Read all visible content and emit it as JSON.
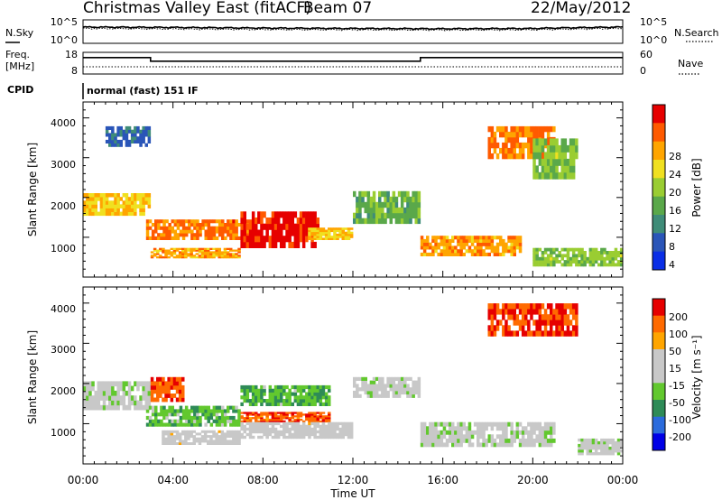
{
  "header": {
    "station": "Christmas Valley East (fitACF)",
    "beam": "Beam 07",
    "date": "22/May/2012"
  },
  "noise_panel": {
    "left_label": "N.Sky",
    "right_label": "N.Search",
    "left_ticks": [
      "10^5",
      "10^0"
    ],
    "right_ticks": [
      "10^5",
      "10^0"
    ]
  },
  "freq_panel": {
    "left_label_1": "Freq.",
    "left_label_2": "[MHz]",
    "right_label": "Nave",
    "left_ticks": [
      "18",
      "8"
    ],
    "right_ticks": [
      "60",
      "0"
    ]
  },
  "cpid": {
    "label": "CPID",
    "mode": "normal (fast) 151 IF"
  },
  "x_axis": {
    "title": "Time UT",
    "ticks": [
      "00:00",
      "04:00",
      "08:00",
      "12:00",
      "16:00",
      "20:00",
      "00:00"
    ]
  },
  "colors": {
    "power_scale": [
      "#0a2ee6",
      "#2a55b8",
      "#3f8c78",
      "#5aa84a",
      "#9acd32",
      "#f0e020",
      "#ffa500",
      "#ff5a00",
      "#e60000"
    ],
    "velocity_scale": [
      "#0000e6",
      "#2b6bdc",
      "#2e8b57",
      "#62c82e",
      "#c8c8c8",
      "#c8c8c8",
      "#ffa500",
      "#ff6a00",
      "#e60000"
    ]
  },
  "chart_data": [
    {
      "type": "line",
      "name": "noise",
      "x": [
        "00:00",
        "04:00",
        "08:00",
        "12:00",
        "16:00",
        "20:00",
        "00:00"
      ],
      "series": [
        {
          "name": "N.Sky",
          "values": [
            3000,
            2500,
            1800,
            1500,
            1300,
            1500,
            3000
          ]
        },
        {
          "name": "N.Search",
          "values": [
            1500,
            1200,
            900,
            800,
            700,
            800,
            1500
          ]
        }
      ],
      "ylim_left": [
        1,
        100000
      ],
      "ylim_right": [
        1,
        100000
      ],
      "scale": "log"
    },
    {
      "type": "line",
      "name": "frequency-nave",
      "x": [
        "00:00",
        "03:00",
        "03:00",
        "15:00",
        "15:00",
        "00:00"
      ],
      "series": [
        {
          "name": "Freq.",
          "values": [
            15.6,
            15.6,
            13.9,
            13.9,
            15.6,
            15.6
          ]
        },
        {
          "name": "Nave",
          "values": [
            20,
            20,
            20,
            20,
            20,
            20
          ]
        }
      ],
      "ylim_left": [
        8,
        18
      ],
      "ylim_right": [
        0,
        60
      ]
    },
    {
      "type": "heatmap",
      "name": "power",
      "xlabel": "",
      "ylabel": "Slant Range [km]",
      "ylim": [
        180,
        4500
      ],
      "yticks": [
        "1000",
        "2000",
        "3000",
        "4000"
      ],
      "colorbar_label": "Power [dB]",
      "colorbar_ticks": [
        "28",
        "24",
        "20",
        "16",
        "12",
        "8",
        "4"
      ],
      "clim": [
        0,
        30
      ],
      "regions": [
        {
          "t0": 0.0,
          "t1": 3.0,
          "r0": 1700,
          "r1": 2250,
          "value": 20
        },
        {
          "t0": 1.0,
          "t1": 3.0,
          "r0": 3400,
          "r1": 3900,
          "value": 6
        },
        {
          "t0": 2.8,
          "t1": 7.5,
          "r0": 1100,
          "r1": 1600,
          "value": 24
        },
        {
          "t0": 3.0,
          "t1": 7.0,
          "r0": 650,
          "r1": 900,
          "value": 22
        },
        {
          "t0": 7.0,
          "t1": 10.5,
          "r0": 900,
          "r1": 1800,
          "value": 28
        },
        {
          "t0": 10.0,
          "t1": 12.0,
          "r0": 1100,
          "r1": 1400,
          "value": 20
        },
        {
          "t0": 12.0,
          "t1": 15.0,
          "r0": 1500,
          "r1": 2300,
          "value": 12
        },
        {
          "t0": 15.0,
          "t1": 19.5,
          "r0": 700,
          "r1": 1200,
          "value": 22
        },
        {
          "t0": 18.0,
          "t1": 21.0,
          "r0": 3100,
          "r1": 3900,
          "value": 24
        },
        {
          "t0": 20.0,
          "t1": 22.0,
          "r0": 2600,
          "r1": 3600,
          "value": 14
        },
        {
          "t0": 20.0,
          "t1": 24.0,
          "r0": 450,
          "r1": 900,
          "value": 14
        }
      ]
    },
    {
      "type": "heatmap",
      "name": "velocity",
      "xlabel": "Time UT",
      "ylabel": "Slant Range [km]",
      "ylim": [
        180,
        4500
      ],
      "yticks": [
        "1000",
        "2000",
        "3000",
        "4000"
      ],
      "colorbar_label": "Velocity [m s⁻¹]",
      "colorbar_ticks": [
        "200",
        "100",
        "50",
        "15",
        "-15",
        "-50",
        "-100",
        "-200"
      ],
      "clim": [
        -250,
        250
      ],
      "regions": [
        {
          "t0": 0.0,
          "t1": 3.0,
          "r0": 1500,
          "r1": 2200,
          "value": 0
        },
        {
          "t0": 3.0,
          "t1": 4.5,
          "r0": 1700,
          "r1": 2300,
          "value": 180
        },
        {
          "t0": 2.8,
          "t1": 7.0,
          "r0": 1100,
          "r1": 1600,
          "value": -60
        },
        {
          "t0": 3.5,
          "t1": 7.0,
          "r0": 650,
          "r1": 1000,
          "value": 40
        },
        {
          "t0": 7.0,
          "t1": 11.0,
          "r0": 1600,
          "r1": 2100,
          "value": -70
        },
        {
          "t0": 7.0,
          "t1": 11.0,
          "r0": 1200,
          "r1": 1450,
          "value": 180
        },
        {
          "t0": 7.0,
          "t1": 12.0,
          "r0": 800,
          "r1": 1200,
          "value": 40
        },
        {
          "t0": 12.0,
          "t1": 15.0,
          "r0": 1800,
          "r1": 2300,
          "value": 0
        },
        {
          "t0": 15.0,
          "t1": 21.0,
          "r0": 600,
          "r1": 1200,
          "value": 0
        },
        {
          "t0": 18.0,
          "t1": 22.0,
          "r0": 3300,
          "r1": 4100,
          "value": 200
        },
        {
          "t0": 22.0,
          "t1": 24.0,
          "r0": 400,
          "r1": 800,
          "value": 0
        }
      ]
    }
  ]
}
